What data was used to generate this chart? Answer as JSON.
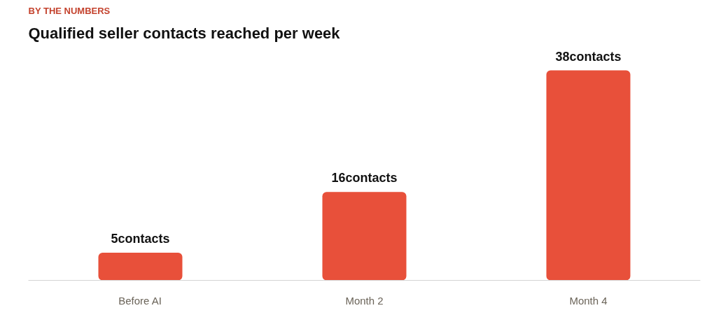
{
  "chart_data": {
    "type": "bar",
    "subtitle": "BY THE NUMBERS",
    "title": "Qualified seller contacts reached per week",
    "categories": [
      "Before AI",
      "Month 2",
      "Month 4"
    ],
    "values": [
      5,
      16,
      38
    ],
    "value_labels": [
      "5contacts",
      "16contacts",
      "38contacts"
    ],
    "color": "#e8503a",
    "grid": false
  }
}
